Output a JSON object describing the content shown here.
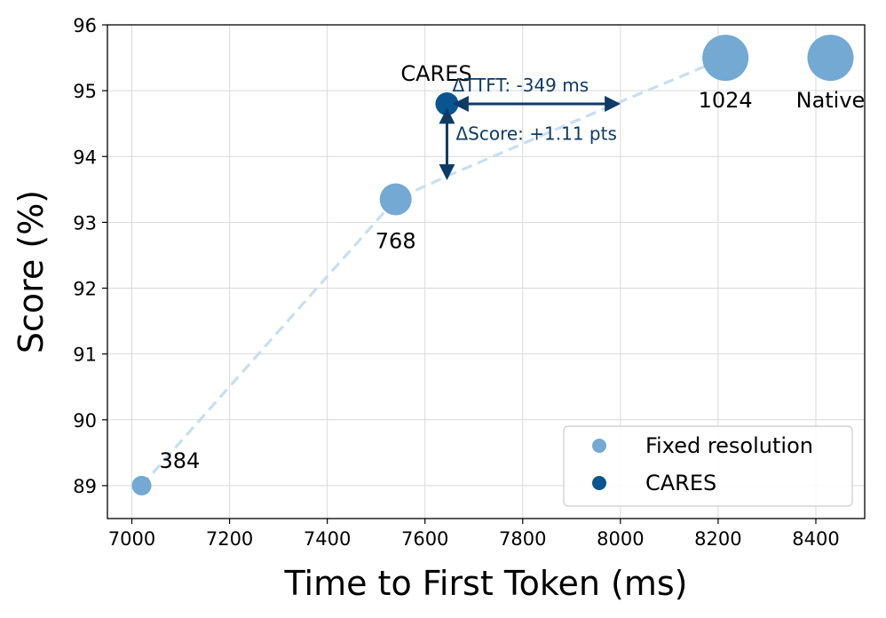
{
  "chart_data": {
    "type": "scatter",
    "title": "",
    "xlabel": "Time to First Token (ms)",
    "ylabel": "Score (%)",
    "xlim": [
      6950,
      8500
    ],
    "ylim": [
      88.5,
      96.0
    ],
    "xticks": [
      7000,
      7200,
      7400,
      7600,
      7800,
      8000,
      8200,
      8400
    ],
    "yticks": [
      89,
      90,
      91,
      92,
      93,
      94,
      95,
      96
    ],
    "grid": true,
    "legend_position": "bottom-right",
    "colors": {
      "fixed": "#73a9d3",
      "cares": "#08558f",
      "trend": "#c6dff0",
      "annotation": "#0d3b66"
    },
    "series": [
      {
        "name": "Fixed resolution",
        "points": [
          {
            "label": "384",
            "x": 7020,
            "y": 89.0,
            "size": 1
          },
          {
            "label": "768",
            "x": 7540,
            "y": 93.35,
            "size": 2
          },
          {
            "label": "1024",
            "x": 8215,
            "y": 95.5,
            "size": 3
          },
          {
            "label": "Native",
            "x": 8430,
            "y": 95.5,
            "size": 3
          }
        ]
      },
      {
        "name": "CARES",
        "points": [
          {
            "label": "CARES",
            "x": 7645,
            "y": 94.8,
            "size": 1
          }
        ]
      }
    ],
    "trendline": [
      {
        "x": 7020,
        "y": 89.0
      },
      {
        "x": 7540,
        "y": 93.35
      },
      {
        "x": 7645,
        "y": 93.7
      },
      {
        "x": 7990,
        "y": 94.8
      },
      {
        "x": 8215,
        "y": 95.5
      }
    ],
    "annotations": [
      {
        "id": "ttft",
        "text": "ΔTTFT: -349 ms",
        "from": {
          "x": 7645,
          "y": 94.8
        },
        "to": {
          "x": 7994,
          "y": 94.8
        }
      },
      {
        "id": "score",
        "text": "ΔScore: +1.11 pts",
        "from": {
          "x": 7645,
          "y": 94.8
        },
        "to": {
          "x": 7645,
          "y": 93.69
        }
      }
    ]
  }
}
